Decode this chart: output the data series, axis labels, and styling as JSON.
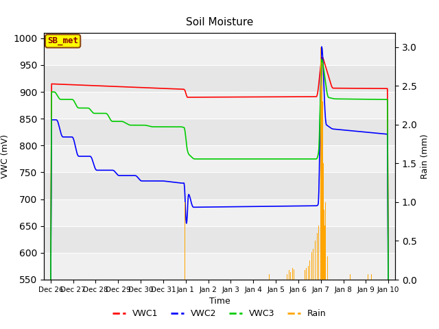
{
  "title": "Soil Moisture",
  "xlabel": "Time",
  "ylabel_left": "VWC (mV)",
  "ylabel_right": "Rain (mm)",
  "ylim_left": [
    550,
    1010
  ],
  "ylim_right": [
    0.0,
    3.1818
  ],
  "yticks_left": [
    550,
    600,
    650,
    700,
    750,
    800,
    850,
    900,
    950,
    1000
  ],
  "yticks_right": [
    0.0,
    0.5,
    1.0,
    1.5,
    2.0,
    2.5,
    3.0
  ],
  "colors": {
    "VWC1": "#ff0000",
    "VWC2": "#0000ff",
    "VWC3": "#00cc00",
    "Rain": "#ffa500"
  },
  "x_tick_labels": [
    "Dec 26",
    "Dec 27",
    "Dec 28",
    "Dec 29",
    "Dec 30",
    "Dec 31",
    "Jan 1",
    "Jan 2",
    "Jan 3",
    "Jan 4",
    "Jan 5",
    "Jan 6",
    "Jan 7",
    "Jan 8",
    "Jan 9",
    "Jan 10"
  ],
  "x_tick_positions": [
    0,
    1,
    2,
    3,
    4,
    5,
    6,
    7,
    8,
    9,
    10,
    11,
    12,
    13,
    14,
    15
  ],
  "xlim": [
    -0.3,
    15.3
  ],
  "annotation": {
    "text": "SB_met",
    "facecolor": "#ffff00",
    "edgecolor": "#8B4513",
    "textcolor": "#8B0000"
  },
  "band_colors": [
    "#f0f0f0",
    "#e0e0e0"
  ],
  "grid_color": "#ffffff"
}
